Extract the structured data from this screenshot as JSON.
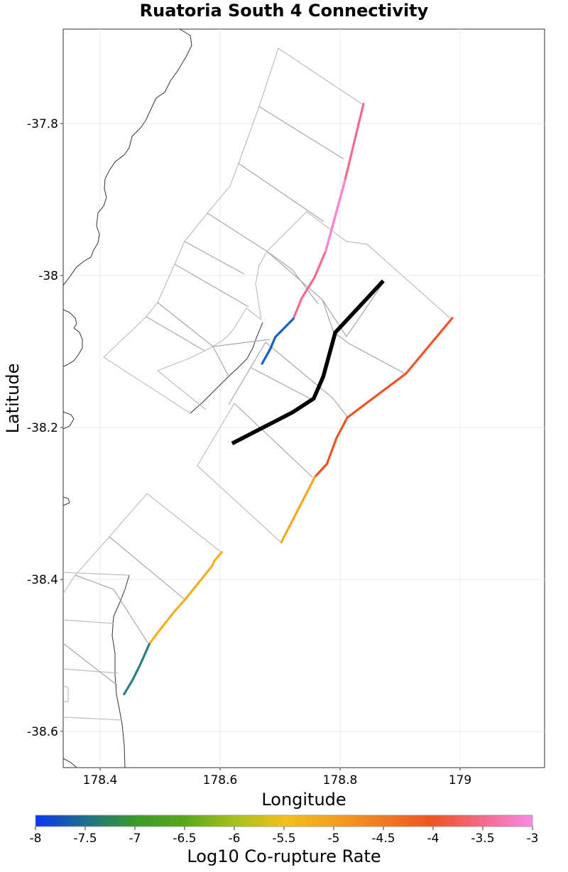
{
  "title": "Ruatoria South 4 Connectivity",
  "x_axis": {
    "label": "Longitude",
    "ticks": [
      "178.4",
      "178.6",
      "178.8",
      "179"
    ]
  },
  "y_axis": {
    "label": "Latitude",
    "ticks": [
      "-37.8",
      "-38",
      "-38.2",
      "-38.4",
      "-38.6"
    ]
  },
  "colorbar": {
    "label": "Log10 Co-rupture Rate",
    "ticks": [
      "-8",
      "-7.5",
      "-7",
      "-6.5",
      "-6",
      "-5.5",
      "-5",
      "-4.5",
      "-4",
      "-3.5",
      "-3"
    ],
    "stops": [
      {
        "value": -8,
        "color": "#0a36f0"
      },
      {
        "value": -7.5,
        "color": "#1f6f8b"
      },
      {
        "value": -7,
        "color": "#3a9a2a"
      },
      {
        "value": -6.5,
        "color": "#59a81c"
      },
      {
        "value": -6,
        "color": "#a6c01c"
      },
      {
        "value": -5.5,
        "color": "#f2c01c"
      },
      {
        "value": -5,
        "color": "#f4a020"
      },
      {
        "value": -4.5,
        "color": "#f07a22"
      },
      {
        "value": -4,
        "color": "#ee5424"
      },
      {
        "value": -3.5,
        "color": "#f46a8a"
      },
      {
        "value": -3,
        "color": "#f88ae8"
      }
    ]
  },
  "chart_data": {
    "type": "map",
    "title": "Ruatoria South 4 Connectivity",
    "xlabel": "Longitude",
    "ylabel": "Latitude",
    "xlim": [
      178.34,
      179.14
    ],
    "ylim": [
      -38.645,
      -37.675
    ],
    "target_fault": {
      "name": "Ruatoria South 4",
      "color": "#000000",
      "trace": [
        [
          178.872,
          -38.007
        ],
        [
          178.792,
          -38.075
        ],
        [
          178.772,
          -38.133
        ],
        [
          178.756,
          -38.162
        ],
        [
          178.721,
          -38.18
        ],
        [
          178.62,
          -38.221
        ]
      ]
    },
    "connected_traces": [
      {
        "log10_rate": -3.9,
        "color": "#ee5424",
        "trace": [
          [
            178.987,
            -38.056
          ],
          [
            178.91,
            -38.129
          ],
          [
            178.812,
            -38.187
          ],
          [
            178.794,
            -38.214
          ],
          [
            178.778,
            -38.248
          ],
          [
            178.758,
            -38.265
          ]
        ]
      },
      {
        "log10_rate": -4.9,
        "color": "#f4a820",
        "trace": [
          [
            178.758,
            -38.265
          ],
          [
            178.702,
            -38.351
          ]
        ]
      },
      {
        "log10_rate": -3.6,
        "color": "#f46a8a",
        "trace": [
          [
            178.839,
            -37.774
          ],
          [
            178.808,
            -37.875
          ],
          [
            178.776,
            -37.968
          ],
          [
            178.757,
            -38.003
          ],
          [
            178.736,
            -38.03
          ],
          [
            178.722,
            -38.057
          ]
        ]
      },
      {
        "log10_rate": -3.2,
        "color": "#f888d4",
        "trace": [
          [
            178.808,
            -37.875
          ],
          [
            178.776,
            -37.968
          ]
        ]
      },
      {
        "log10_rate": -7.9,
        "color": "#1460c8",
        "trace": [
          [
            178.722,
            -38.057
          ],
          [
            178.692,
            -38.081
          ],
          [
            178.684,
            -38.096
          ],
          [
            178.67,
            -38.116
          ]
        ]
      },
      {
        "log10_rate": -5.0,
        "color": "#f2b020",
        "trace": [
          [
            178.603,
            -38.364
          ],
          [
            178.591,
            -38.375
          ],
          [
            178.587,
            -38.382
          ],
          [
            178.541,
            -38.427
          ],
          [
            178.523,
            -38.443
          ],
          [
            178.495,
            -38.471
          ],
          [
            178.482,
            -38.485
          ]
        ]
      },
      {
        "log10_rate": -7.3,
        "color": "#2a8080",
        "trace": [
          [
            178.482,
            -38.485
          ],
          [
            178.468,
            -38.51
          ],
          [
            178.455,
            -38.531
          ],
          [
            178.44,
            -38.551
          ]
        ]
      }
    ]
  }
}
